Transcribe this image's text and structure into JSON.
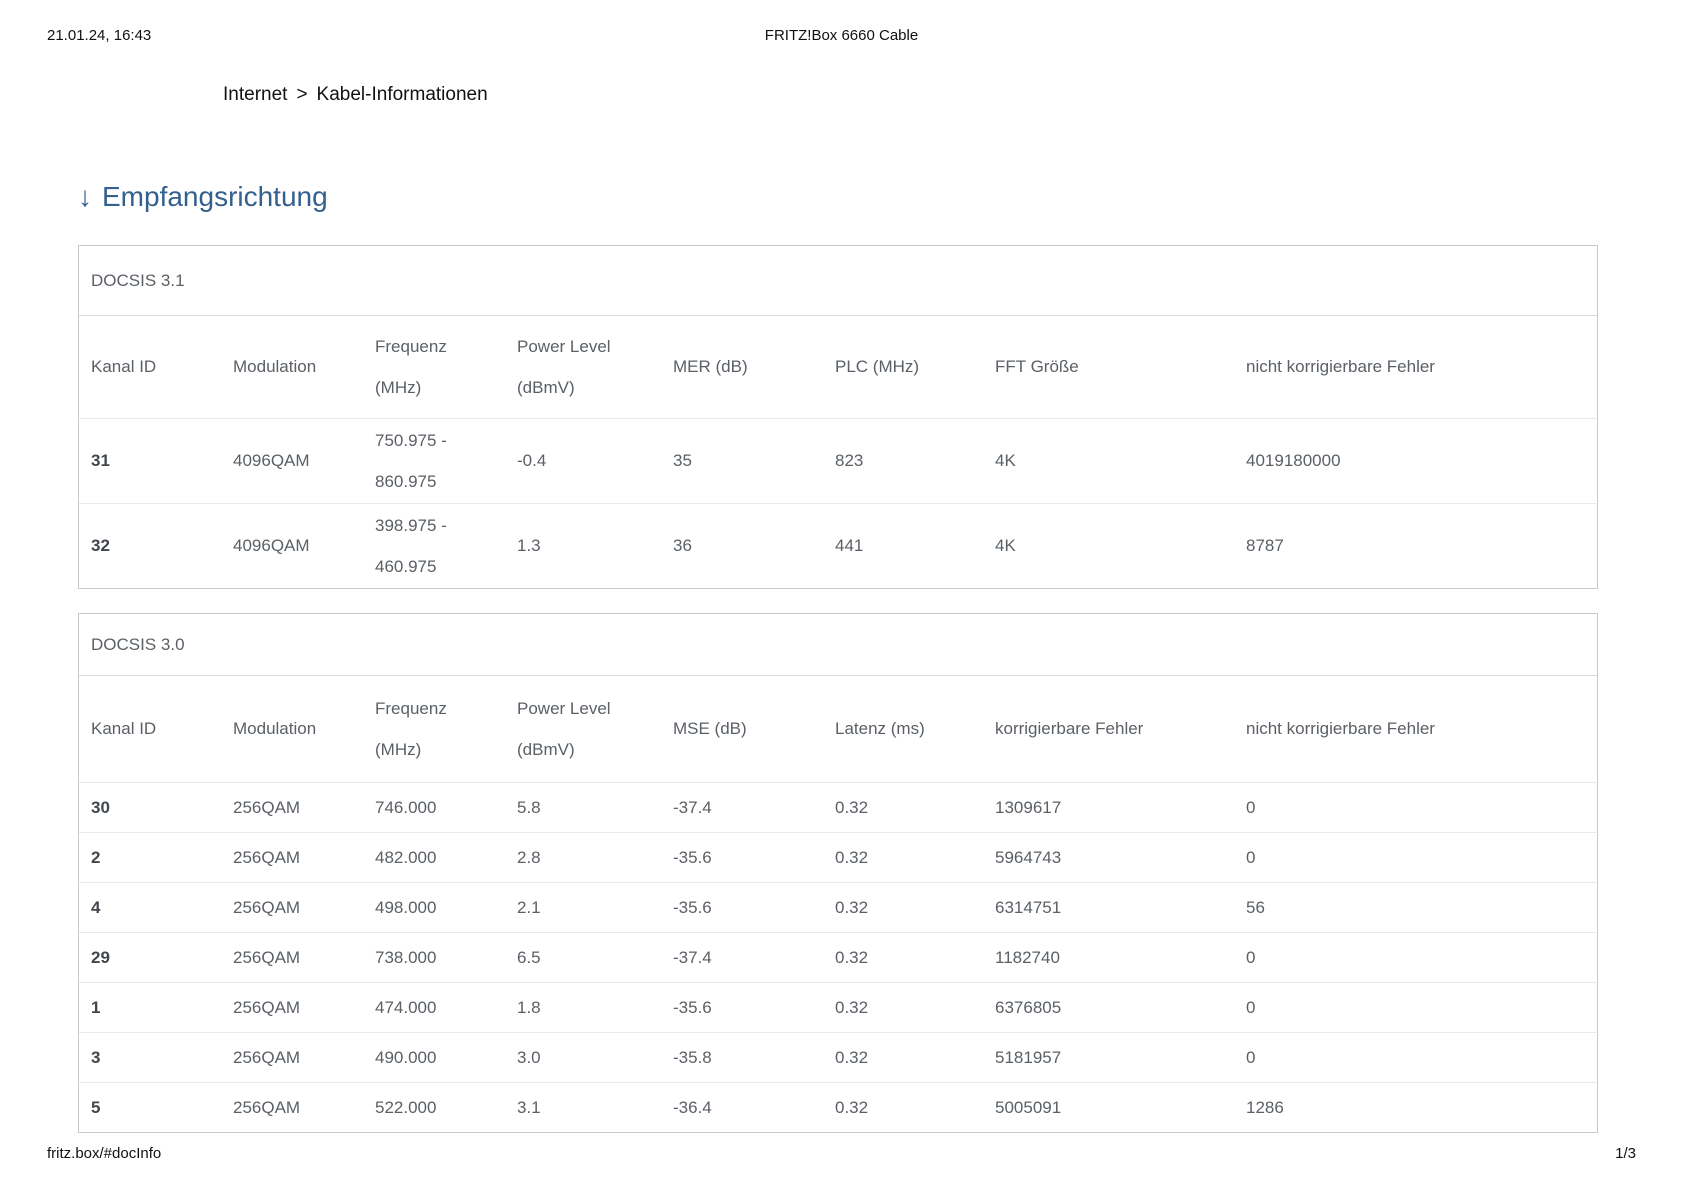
{
  "print_header": {
    "date": "21.01.24, 16:43",
    "title": "FRITZ!Box 6660 Cable"
  },
  "breadcrumb": {
    "item1": "Internet",
    "separator": ">",
    "item2": "Kabel-Informationen"
  },
  "section": {
    "arrow": "↓",
    "title": "Empfangsrichtung"
  },
  "tables": [
    {
      "caption": "DOCSIS 3.1",
      "headers": [
        "Kanal ID",
        "Modulation",
        "Frequenz\n(MHz)",
        "Power Level\n(dBmV)",
        "MER (dB)",
        "PLC (MHz)",
        "FFT Größe",
        "nicht korrigierbare Fehler"
      ],
      "rows": [
        [
          "31",
          "4096QAM",
          "750.975 -\n860.975",
          "-0.4",
          "35",
          "823",
          "4K",
          "4019180000"
        ],
        [
          "32",
          "4096QAM",
          "398.975 -\n460.975",
          "1.3",
          "36",
          "441",
          "4K",
          "8787"
        ]
      ]
    },
    {
      "caption": "DOCSIS 3.0",
      "headers": [
        "Kanal ID",
        "Modulation",
        "Frequenz\n(MHz)",
        "Power Level\n(dBmV)",
        "MSE (dB)",
        "Latenz (ms)",
        "korrigierbare Fehler",
        "nicht korrigierbare Fehler"
      ],
      "rows": [
        [
          "30",
          "256QAM",
          "746.000",
          "5.8",
          "-37.4",
          "0.32",
          "1309617",
          "0"
        ],
        [
          "2",
          "256QAM",
          "482.000",
          "2.8",
          "-35.6",
          "0.32",
          "5964743",
          "0"
        ],
        [
          "4",
          "256QAM",
          "498.000",
          "2.1",
          "-35.6",
          "0.32",
          "6314751",
          "56"
        ],
        [
          "29",
          "256QAM",
          "738.000",
          "6.5",
          "-37.4",
          "0.32",
          "1182740",
          "0"
        ],
        [
          "1",
          "256QAM",
          "474.000",
          "1.8",
          "-35.6",
          "0.32",
          "6376805",
          "0"
        ],
        [
          "3",
          "256QAM",
          "490.000",
          "3.0",
          "-35.8",
          "0.32",
          "5181957",
          "0"
        ],
        [
          "5",
          "256QAM",
          "522.000",
          "3.1",
          "-36.4",
          "0.32",
          "5005091",
          "1286"
        ]
      ]
    }
  ],
  "print_footer": {
    "url": "fritz.box/#docInfo",
    "page": "1/3"
  },
  "colors": {
    "heading_blue": "#33608d",
    "table_text_gray": "#5b6066",
    "channel_id_dark": "#42474e",
    "table_border": "#c9c9c9",
    "row_separator": "#e9e9e9"
  }
}
